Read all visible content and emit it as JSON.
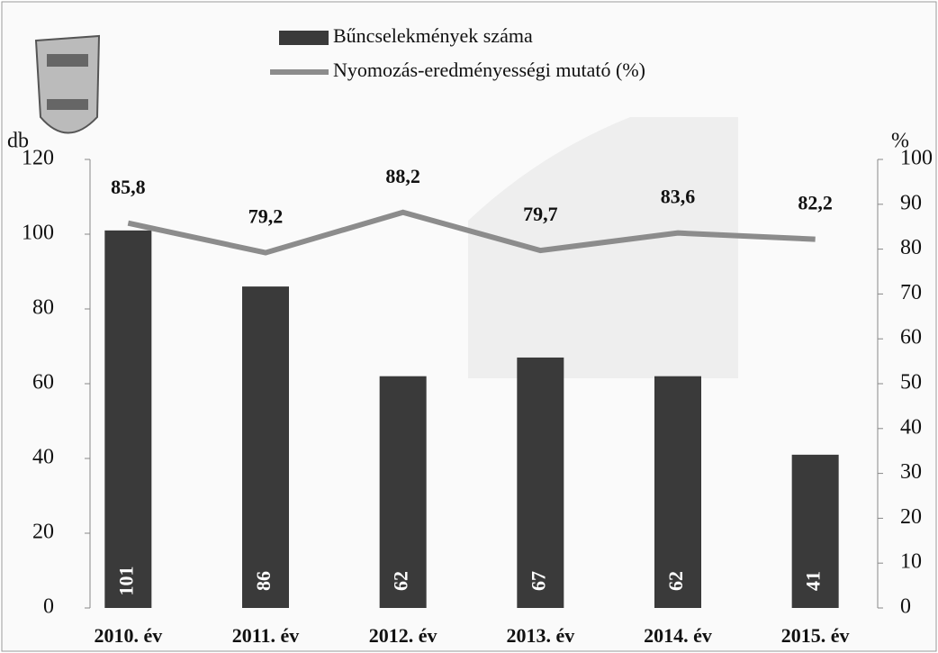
{
  "chart_data": {
    "type": "bar",
    "categories": [
      "2010. év",
      "2011. év",
      "2012. év",
      "2013. év",
      "2014. év",
      "2015. év"
    ],
    "series": [
      {
        "name": "Bűncselekmények száma",
        "color": "#3a3a3a",
        "values": [
          101,
          86,
          62,
          67,
          62,
          41
        ]
      },
      {
        "name": "Nyomozás-eredményességi mutató (%)",
        "color": "#8c8c8c",
        "type": "line",
        "axis": "y2",
        "values": [
          85.8,
          79.2,
          88.2,
          79.7,
          83.6,
          82.2
        ],
        "value_labels": [
          "85,8",
          "79,2",
          "88,2",
          "79,7",
          "83,6",
          "82,2"
        ]
      }
    ],
    "ylabel": "db",
    "y2label": "%",
    "ylim": [
      0,
      120
    ],
    "yticks": [
      0,
      20,
      40,
      60,
      80,
      100,
      120
    ],
    "y2lim": [
      0,
      100
    ],
    "y2ticks": [
      0,
      10,
      20,
      30,
      40,
      50,
      60,
      70,
      80,
      90,
      100
    ],
    "legend": "top"
  }
}
